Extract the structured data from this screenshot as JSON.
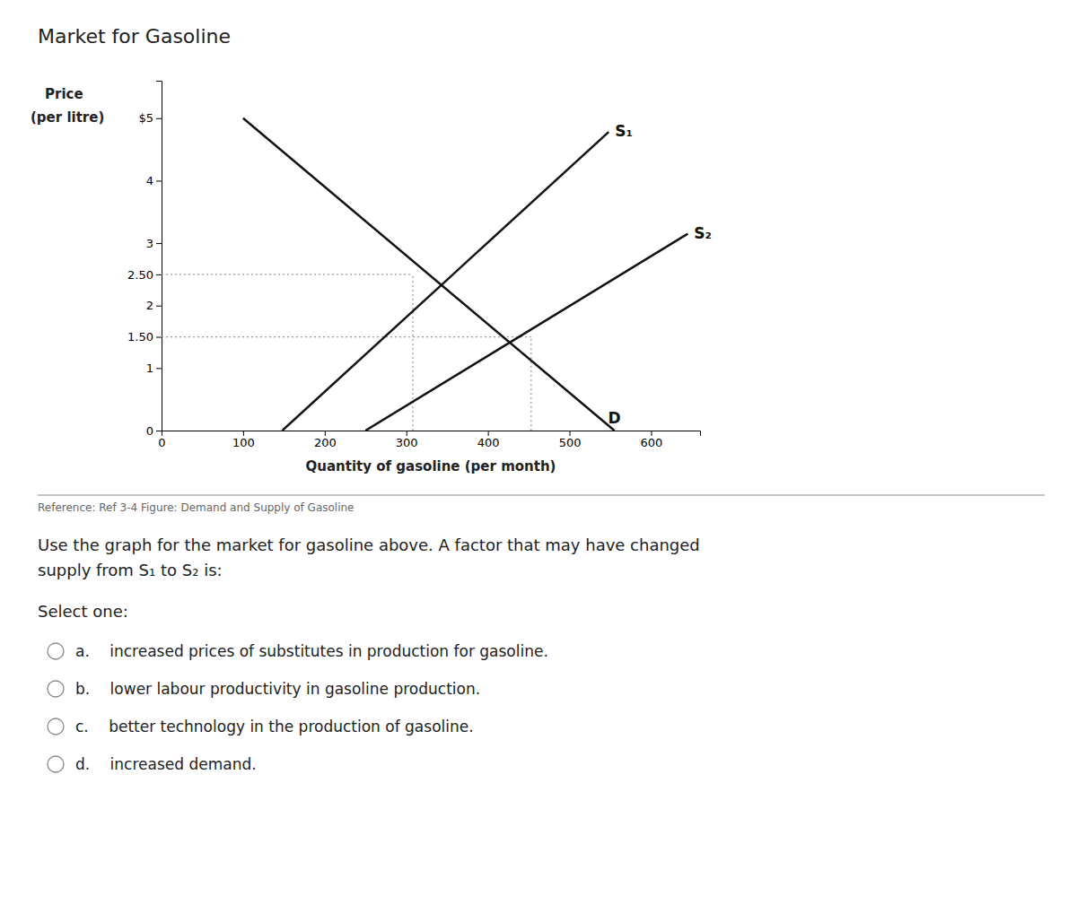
{
  "chart_data": {
    "type": "line",
    "title": "Market for Gasoline",
    "xlabel": "Quantity of gasoline (per month)",
    "ylabel": [
      "Price",
      "(per litre)"
    ],
    "xlim": [
      0,
      660
    ],
    "ylim": [
      0,
      5.6
    ],
    "xticks": [
      0,
      100,
      200,
      300,
      400,
      500,
      600
    ],
    "yticks": [
      0,
      1,
      {
        "value": 1.5,
        "label": "1.50"
      },
      2,
      {
        "value": 2.5,
        "label": "2.50"
      },
      3,
      4,
      {
        "value": 5,
        "label": "$5"
      }
    ],
    "grid": false,
    "series": [
      {
        "name": "D",
        "color": "#111111",
        "x": [
          100,
          555
        ],
        "values": [
          5.0,
          0.0
        ]
      },
      {
        "name": "S₁",
        "color": "#111111",
        "x": [
          148,
          548
        ],
        "values": [
          0.0,
          4.78
        ]
      },
      {
        "name": "S₂",
        "color": "#111111",
        "x": [
          250,
          645
        ],
        "values": [
          0.0,
          3.15
        ]
      }
    ],
    "equilibria": {
      "x": [
        308,
        453
      ],
      "y": [
        2.5,
        1.5
      ]
    }
  },
  "question": {
    "reference": "Reference: Ref 3-4 Figure: Demand and Supply of Gasoline",
    "prompt": [
      "Use the graph for the market for gasoline above. A factor that may have changed",
      "supply from S₁ to S₂ is:"
    ],
    "select": "Select one:",
    "options": [
      "a.  increased prices of substitutes in production for gasoline.",
      "b.  lower labour productivity in gasoline production.",
      "c.  better technology in the production of gasoline.",
      "d.  increased demand."
    ]
  }
}
